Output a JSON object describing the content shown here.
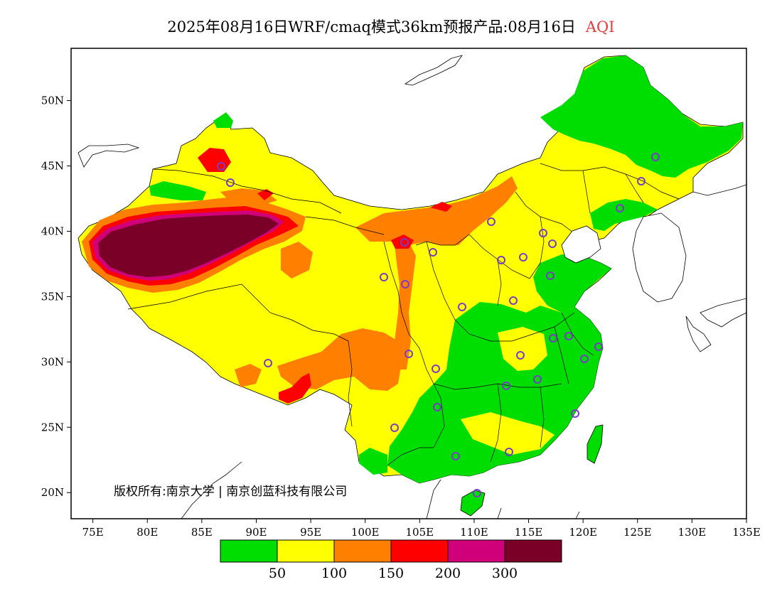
{
  "title": {
    "main": "2025年08月16日WRF/cmaq模式36km预报产品:08月16日",
    "variable": "AQI",
    "variable_color": "#e53c3c"
  },
  "map": {
    "lon_range": [
      73,
      135
    ],
    "lat_range": [
      18,
      54
    ],
    "lon_ticks": [
      "75E",
      "80E",
      "85E",
      "90E",
      "95E",
      "100E",
      "105E",
      "110E",
      "115E",
      "120E",
      "125E",
      "130E",
      "135E"
    ],
    "lat_ticks": [
      "20N",
      "25N",
      "30N",
      "35N",
      "40N",
      "45N",
      "50N"
    ],
    "copyright": "版权所有:南京大学 | 南京创蓝科技有限公司",
    "station_marker_color": "#7a3cc8"
  },
  "legend": {
    "colors": [
      "#00dd00",
      "#ffff00",
      "#ff8000",
      "#ff0000",
      "#d0007a",
      "#7a0027"
    ],
    "labels": [
      "50",
      "100",
      "150",
      "200",
      "300"
    ]
  }
}
